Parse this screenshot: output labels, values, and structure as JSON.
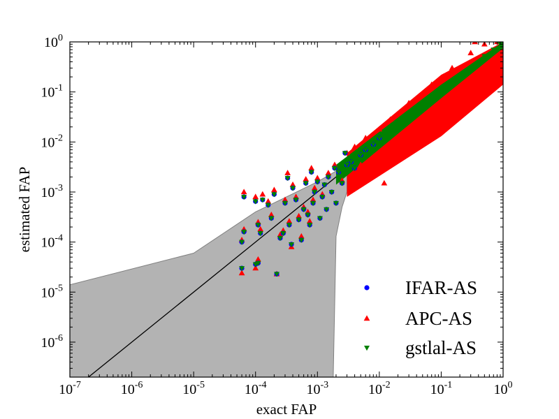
{
  "chart_data": {
    "type": "scatter",
    "title": "",
    "xlabel": "exact FAP",
    "ylabel": "estimated FAP",
    "xscale": "log",
    "yscale": "log",
    "xlim": [
      1e-07,
      1
    ],
    "ylim": [
      2e-07,
      1
    ],
    "x_ticks": [
      {
        "value": 1e-07,
        "label_base": "10",
        "label_exp": "-7"
      },
      {
        "value": 1e-06,
        "label_base": "10",
        "label_exp": "-6"
      },
      {
        "value": 1e-05,
        "label_base": "10",
        "label_exp": "-5"
      },
      {
        "value": 0.0001,
        "label_base": "10",
        "label_exp": "-4"
      },
      {
        "value": 0.001,
        "label_base": "10",
        "label_exp": "-3"
      },
      {
        "value": 0.01,
        "label_base": "10",
        "label_exp": "-2"
      },
      {
        "value": 0.1,
        "label_base": "10",
        "label_exp": "-1"
      },
      {
        "value": 1,
        "label_base": "10",
        "label_exp": "0"
      }
    ],
    "y_ticks": [
      {
        "value": 1e-06,
        "label_base": "10",
        "label_exp": "-6"
      },
      {
        "value": 1e-05,
        "label_base": "10",
        "label_exp": "-5"
      },
      {
        "value": 0.0001,
        "label_base": "10",
        "label_exp": "-4"
      },
      {
        "value": 0.001,
        "label_base": "10",
        "label_exp": "-3"
      },
      {
        "value": 0.01,
        "label_base": "10",
        "label_exp": "-2"
      },
      {
        "value": 0.1,
        "label_base": "10",
        "label_exp": "-1"
      },
      {
        "value": 1,
        "label_base": "10",
        "label_exp": "0"
      }
    ],
    "grid": false,
    "legend_position": "bottom-right",
    "reference_line": {
      "x": [
        1e-07,
        1
      ],
      "y": [
        1e-07,
        1
      ],
      "color": "#000000"
    },
    "confidence_band": {
      "color": "#b3b3b3",
      "upper": [
        [
          1e-07,
          1.4e-05
        ],
        [
          1e-05,
          6e-05
        ],
        [
          0.0001,
          0.0004
        ],
        [
          0.001,
          0.0016
        ],
        [
          0.003,
          0.0035
        ]
      ],
      "lower": [
        [
          0.0018,
          2e-07
        ],
        [
          0.002,
          0.00013
        ],
        [
          0.0025,
          0.0005
        ],
        [
          0.003,
          0.001
        ]
      ]
    },
    "series": [
      {
        "name": "IFAR-AS",
        "marker": "circle",
        "color": "#0000ff",
        "points": [
          [
            6e-05,
            0.0001
          ],
          [
            6.5e-05,
            0.00016
          ],
          [
            6e-05,
            3e-05
          ],
          [
            6.5e-05,
            0.0008
          ],
          [
            0.0001,
            0.00065
          ],
          [
            0.00011,
            0.00022
          ],
          [
            0.0001,
            3.6e-05
          ],
          [
            0.00011,
            3.8e-05
          ],
          [
            0.00013,
            0.0007
          ],
          [
            0.00012,
            0.00015
          ],
          [
            0.00016,
            0.00055
          ],
          [
            0.00018,
            0.0003
          ],
          [
            0.0002,
            0.0009
          ],
          [
            0.00022,
            2.3e-05
          ],
          [
            0.00025,
            0.00012
          ],
          [
            0.00028,
            0.00015
          ],
          [
            0.0003,
            0.0006
          ],
          [
            0.00033,
            0.0019
          ],
          [
            0.00035,
            0.00022
          ],
          [
            0.00038,
            9e-05
          ],
          [
            0.0004,
            0.0012
          ],
          [
            0.00045,
            0.0007
          ],
          [
            0.0005,
            0.00028
          ],
          [
            0.00055,
            0.00011
          ],
          [
            0.0006,
            0.00045
          ],
          [
            0.00065,
            0.0015
          ],
          [
            0.0007,
            0.00035
          ],
          [
            0.00075,
            0.00022
          ],
          [
            0.0008,
            0.0025
          ],
          [
            0.00085,
            0.0006
          ],
          [
            0.0009,
            0.001
          ],
          [
            0.001,
            0.0016
          ],
          [
            0.0011,
            0.0003
          ],
          [
            0.0012,
            0.0008
          ],
          [
            0.0013,
            0.0014
          ],
          [
            0.0014,
            0.00045
          ],
          [
            0.0015,
            0.002
          ],
          [
            0.0017,
            0.001
          ],
          [
            0.0019,
            0.003
          ],
          [
            0.002,
            0.0006
          ],
          [
            0.0022,
            0.0025
          ],
          [
            0.0025,
            0.0015
          ],
          [
            0.0028,
            0.006
          ],
          [
            0.003,
            0.0035
          ],
          [
            0.0035,
            0.004
          ],
          [
            0.004,
            0.003
          ],
          [
            0.005,
            0.0055
          ],
          [
            0.006,
            0.007
          ],
          [
            0.008,
            0.009
          ],
          [
            0.01,
            0.012
          ]
        ]
      },
      {
        "name": "APC-AS",
        "marker": "triangle-up",
        "color": "#ff0000",
        "points": [
          [
            6e-05,
            0.00011
          ],
          [
            6.5e-05,
            0.00018
          ],
          [
            6e-05,
            2.4e-05
          ],
          [
            6.5e-05,
            0.001
          ],
          [
            0.0001,
            0.0008
          ],
          [
            0.00011,
            0.00025
          ],
          [
            0.0001,
            3e-05
          ],
          [
            0.00011,
            4.5e-05
          ],
          [
            0.00013,
            0.0009
          ],
          [
            0.00012,
            0.00018
          ],
          [
            0.00016,
            0.00065
          ],
          [
            0.00018,
            0.00035
          ],
          [
            0.0002,
            0.0011
          ],
          [
            0.00022,
            2.3e-05
          ],
          [
            0.00025,
            0.00014
          ],
          [
            0.00028,
            0.00017
          ],
          [
            0.0003,
            0.0007
          ],
          [
            0.00033,
            0.0024
          ],
          [
            0.00035,
            0.00026
          ],
          [
            0.00038,
            8e-05
          ],
          [
            0.0004,
            0.0014
          ],
          [
            0.00045,
            0.0008
          ],
          [
            0.0005,
            0.00033
          ],
          [
            0.00055,
            0.00013
          ],
          [
            0.0006,
            0.0005
          ],
          [
            0.00065,
            0.0018
          ],
          [
            0.0007,
            0.0004
          ],
          [
            0.00075,
            0.00026
          ],
          [
            0.0008,
            0.003
          ],
          [
            0.00085,
            0.0007
          ],
          [
            0.0009,
            0.0012
          ],
          [
            0.001,
            0.0019
          ],
          [
            0.0012,
            0.0009
          ],
          [
            0.0015,
            0.0024
          ],
          [
            0.0019,
            0.0035
          ],
          [
            0.0025,
            0.0017
          ],
          [
            0.003,
            0.006
          ],
          [
            0.004,
            0.008
          ],
          [
            0.005,
            0.0035
          ],
          [
            0.006,
            0.012
          ],
          [
            0.008,
            0.005
          ],
          [
            0.01,
            0.018
          ],
          [
            0.012,
            0.0015
          ],
          [
            0.015,
            0.028
          ],
          [
            0.02,
            0.011
          ],
          [
            0.03,
            0.06
          ],
          [
            0.05,
            0.02
          ],
          [
            0.07,
            0.14
          ],
          [
            0.1,
            0.05
          ],
          [
            0.15,
            0.3
          ],
          [
            0.2,
            0.1
          ],
          [
            0.3,
            0.6
          ],
          [
            0.4,
            0.18
          ],
          [
            0.5,
            0.9
          ],
          [
            0.6,
            0.25
          ],
          [
            0.8,
            1
          ],
          [
            0.9,
            0.5
          ],
          [
            0.35,
            1
          ]
        ]
      },
      {
        "name": "gstlal-AS",
        "marker": "triangle-down",
        "color": "#008000",
        "points": [
          [
            6e-05,
            0.0001
          ],
          [
            6.5e-05,
            0.00016
          ],
          [
            6e-05,
            3e-05
          ],
          [
            6.5e-05,
            0.0008
          ],
          [
            0.0001,
            0.00065
          ],
          [
            0.00011,
            0.00022
          ],
          [
            0.0001,
            3.6e-05
          ],
          [
            0.00011,
            3.8e-05
          ],
          [
            0.00013,
            0.0007
          ],
          [
            0.00012,
            0.00015
          ],
          [
            0.00016,
            0.00055
          ],
          [
            0.00018,
            0.0003
          ],
          [
            0.0002,
            0.0009
          ],
          [
            0.00022,
            2.3e-05
          ],
          [
            0.00025,
            0.00012
          ],
          [
            0.00028,
            0.00015
          ],
          [
            0.0003,
            0.0006
          ],
          [
            0.00033,
            0.0019
          ],
          [
            0.00035,
            0.00022
          ],
          [
            0.00038,
            9e-05
          ],
          [
            0.0004,
            0.0012
          ],
          [
            0.00045,
            0.0007
          ],
          [
            0.0005,
            0.00028
          ],
          [
            0.00055,
            0.00011
          ],
          [
            0.0006,
            0.00045
          ],
          [
            0.00065,
            0.0015
          ],
          [
            0.0007,
            0.00035
          ],
          [
            0.00075,
            0.00022
          ],
          [
            0.0008,
            0.0025
          ],
          [
            0.00085,
            0.0006
          ],
          [
            0.0009,
            0.001
          ],
          [
            0.001,
            0.0016
          ],
          [
            0.0011,
            0.0003
          ],
          [
            0.0012,
            0.0008
          ],
          [
            0.0013,
            0.0014
          ],
          [
            0.0014,
            0.00045
          ],
          [
            0.0015,
            0.002
          ],
          [
            0.0017,
            0.001
          ],
          [
            0.0019,
            0.003
          ],
          [
            0.002,
            0.0006
          ],
          [
            0.0022,
            0.0025
          ],
          [
            0.0025,
            0.0015
          ],
          [
            0.0028,
            0.006
          ],
          [
            0.003,
            0.0035
          ],
          [
            0.0035,
            0.004
          ],
          [
            0.004,
            0.003
          ],
          [
            0.005,
            0.0055
          ],
          [
            0.006,
            0.007
          ],
          [
            0.008,
            0.009
          ],
          [
            0.01,
            0.012
          ],
          [
            0.015,
            0.016
          ],
          [
            0.02,
            0.022
          ],
          [
            0.03,
            0.03
          ],
          [
            0.05,
            0.055
          ],
          [
            0.07,
            0.07
          ],
          [
            0.1,
            0.105
          ],
          [
            0.15,
            0.15
          ],
          [
            0.2,
            0.21
          ],
          [
            0.3,
            0.3
          ],
          [
            0.5,
            0.52
          ],
          [
            0.7,
            0.7
          ],
          [
            0.9,
            0.9
          ]
        ]
      }
    ]
  }
}
